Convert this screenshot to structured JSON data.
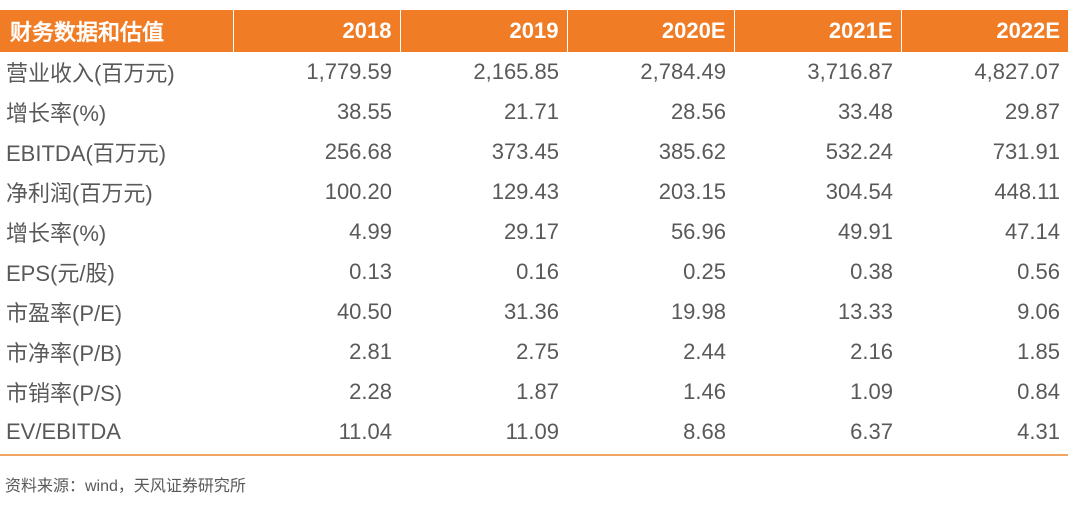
{
  "table": {
    "header": [
      "财务数据和估值",
      "2018",
      "2019",
      "2020E",
      "2021E",
      "2022E"
    ],
    "rows": [
      {
        "label": "营业收入(百万元)",
        "values": [
          "1,779.59",
          "2,165.85",
          "2,784.49",
          "3,716.87",
          "4,827.07"
        ]
      },
      {
        "label": "增长率(%)",
        "values": [
          "38.55",
          "21.71",
          "28.56",
          "33.48",
          "29.87"
        ]
      },
      {
        "label": "EBITDA(百万元)",
        "values": [
          "256.68",
          "373.45",
          "385.62",
          "532.24",
          "731.91"
        ]
      },
      {
        "label": "净利润(百万元)",
        "values": [
          "100.20",
          "129.43",
          "203.15",
          "304.54",
          "448.11"
        ]
      },
      {
        "label": "增长率(%)",
        "values": [
          "4.99",
          "29.17",
          "56.96",
          "49.91",
          "47.14"
        ]
      },
      {
        "label": "EPS(元/股)",
        "values": [
          "0.13",
          "0.16",
          "0.25",
          "0.38",
          "0.56"
        ]
      },
      {
        "label": "市盈率(P/E)",
        "values": [
          "40.50",
          "31.36",
          "19.98",
          "13.33",
          "9.06"
        ]
      },
      {
        "label": "市净率(P/B)",
        "values": [
          "2.81",
          "2.75",
          "2.44",
          "2.16",
          "1.85"
        ]
      },
      {
        "label": "市销率(P/S)",
        "values": [
          "2.28",
          "1.87",
          "1.46",
          "1.09",
          "0.84"
        ]
      },
      {
        "label": "EV/EBITDA",
        "values": [
          "11.04",
          "11.09",
          "8.68",
          "6.37",
          "4.31"
        ]
      }
    ]
  },
  "footer": {
    "source": "资料来源：wind，天风证券研究所"
  },
  "colors": {
    "header_bg": "#F07D26",
    "header_text": "#FFFFFF",
    "header_separator": "rgba(255,255,255,0.35)",
    "body_text": "#595959",
    "divider": "#F0A560"
  }
}
